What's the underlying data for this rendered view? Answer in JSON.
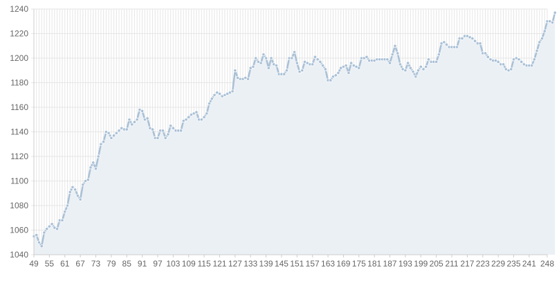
{
  "chart_data": {
    "type": "area",
    "x_start": 49,
    "x_end": 248,
    "x_tick_labels": [
      "49",
      "55",
      "61",
      "67",
      "73",
      "79",
      "85",
      "91",
      "97",
      "103",
      "109",
      "115",
      "121",
      "127",
      "133",
      "139",
      "145",
      "151",
      "157",
      "163",
      "169",
      "175",
      "181",
      "187",
      "193",
      "199",
      "205",
      "211",
      "217",
      "223",
      "229",
      "235",
      "241",
      "248"
    ],
    "y_tick_labels": [
      "1040",
      "1060",
      "1080",
      "1100",
      "1120",
      "1140",
      "1160",
      "1180",
      "1200",
      "1220",
      "1240"
    ],
    "ylim": [
      1040,
      1240
    ],
    "grid": true,
    "colors": {
      "line": "#a9c0d6",
      "fill": "#ebf0f5",
      "grid": "#e6e6e6",
      "axis": "#cccccc",
      "tick_text": "#666666"
    },
    "values": [
      1055,
      1056,
      1050,
      1047,
      1058,
      1061,
      1063,
      1065,
      1062,
      1061,
      1068,
      1068,
      1075,
      1080,
      1091,
      1095,
      1093,
      1088,
      1085,
      1097,
      1100,
      1101,
      1111,
      1115,
      1110,
      1120,
      1130,
      1132,
      1140,
      1139,
      1135,
      1137,
      1139,
      1141,
      1143,
      1142,
      1142,
      1150,
      1146,
      1148,
      1150,
      1158,
      1157,
      1150,
      1151,
      1143,
      1142,
      1135,
      1135,
      1141,
      1141,
      1135,
      1138,
      1145,
      1143,
      1141,
      1141,
      1141,
      1149,
      1150,
      1152,
      1154,
      1155,
      1156,
      1150,
      1150,
      1152,
      1155,
      1163,
      1167,
      1170,
      1172,
      1171,
      1169,
      1170,
      1171,
      1172,
      1173,
      1190,
      1184,
      1183,
      1183,
      1184,
      1183,
      1192,
      1193,
      1200,
      1197,
      1196,
      1203,
      1200,
      1192,
      1200,
      1195,
      1194,
      1187,
      1187,
      1187,
      1190,
      1200,
      1200,
      1205,
      1196,
      1189,
      1190,
      1197,
      1196,
      1195,
      1195,
      1201,
      1199,
      1197,
      1194,
      1191,
      1182,
      1182,
      1185,
      1186,
      1188,
      1192,
      1193,
      1194,
      1188,
      1196,
      1194,
      1193,
      1192,
      1200,
      1200,
      1201,
      1198,
      1198,
      1198,
      1199,
      1199,
      1199,
      1199,
      1199,
      1196,
      1203,
      1210,
      1204,
      1195,
      1191,
      1190,
      1196,
      1192,
      1189,
      1185,
      1190,
      1193,
      1191,
      1193,
      1199,
      1197,
      1197,
      1197,
      1203,
      1212,
      1213,
      1211,
      1209,
      1209,
      1209,
      1209,
      1216,
      1216,
      1218,
      1218,
      1217,
      1216,
      1214,
      1212,
      1212,
      1204,
      1204,
      1201,
      1199,
      1198,
      1198,
      1197,
      1195,
      1195,
      1191,
      1190,
      1191,
      1199,
      1200,
      1199,
      1197,
      1195,
      1194,
      1194,
      1194,
      1199,
      1206,
      1213,
      1216,
      1222,
      1230,
      1230,
      1229,
      1237
    ]
  }
}
